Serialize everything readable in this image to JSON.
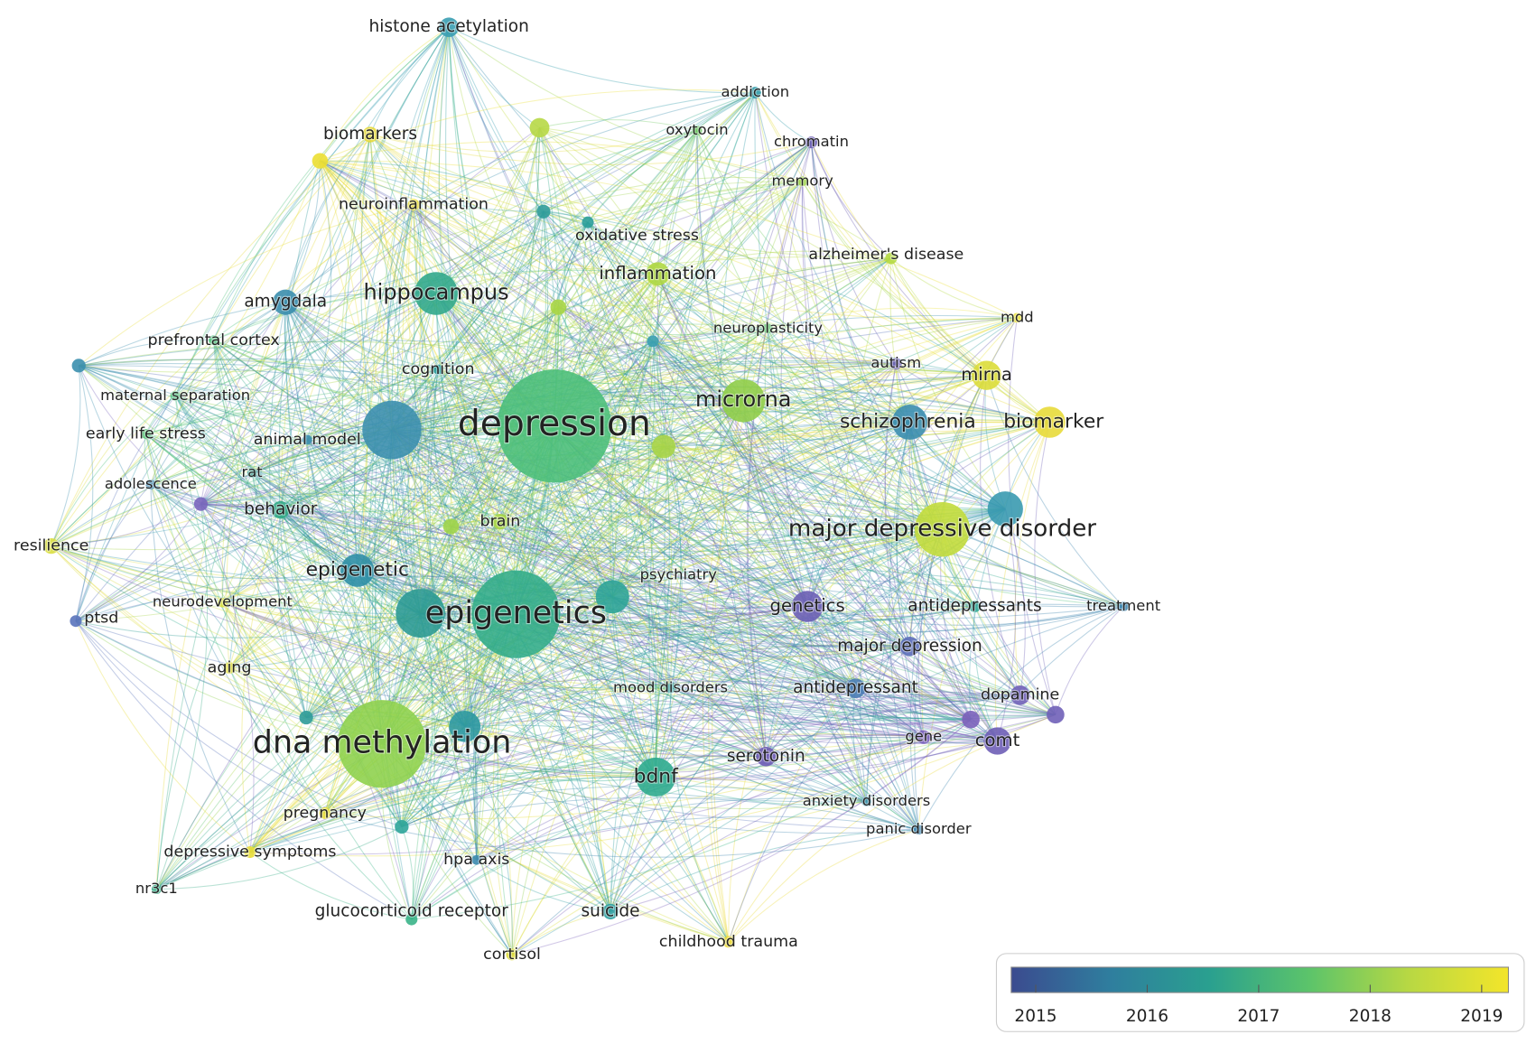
{
  "nodes": [
    {
      "label": "histone acetylation",
      "color": "#3a9fb2"
    },
    {
      "label": "addiction",
      "color": "#2f9aa8"
    },
    {
      "label": "biomarkers",
      "color": "#e6d93a"
    },
    {
      "label": "oxytocin",
      "color": "#6cc85e"
    },
    {
      "label": "chromatin",
      "color": "#6a5cb3"
    },
    {
      "label": "memory",
      "color": "#9ed44a"
    },
    {
      "label": "neuroinflammation",
      "color": "#e9dd36"
    },
    {
      "label": "oxidative stress",
      "color": "#2b9f9a"
    },
    {
      "label": "alzheimer's disease",
      "color": "#b5d942"
    },
    {
      "label": "inflammation",
      "color": "#b0d843"
    },
    {
      "label": "hippocampus",
      "color": "#32a98c"
    },
    {
      "label": "amygdala",
      "color": "#3b8eae"
    },
    {
      "label": "mdd",
      "color": "#ece33a"
    },
    {
      "label": "neuroplasticity",
      "color": "#5ec46e"
    },
    {
      "label": "prefrontal cortex",
      "color": "#4cbf7a"
    },
    {
      "label": "cognition",
      "color": "#2e9c9c"
    },
    {
      "label": "autism",
      "color": "#6b5fb5"
    },
    {
      "label": "mirna",
      "color": "#dcdd3a"
    },
    {
      "label": "maternal separation",
      "color": "#4cbf7a"
    },
    {
      "label": "microrna",
      "color": "#8fcd4a"
    },
    {
      "label": "depression",
      "color": "#4cbf7a"
    },
    {
      "label": "schizophrenia",
      "color": "#3a8daf"
    },
    {
      "label": "biomarker",
      "color": "#e8da3a"
    },
    {
      "label": "early life stress",
      "color": "#55c275"
    },
    {
      "label": "animal model",
      "color": "#3c8fae"
    },
    {
      "label": "rat",
      "color": "#3aa090"
    },
    {
      "label": "adolescence",
      "color": "#3d85b0"
    },
    {
      "label": "behavior",
      "color": "#30a886"
    },
    {
      "label": "brain",
      "color": "#a9d646"
    },
    {
      "label": "resilience",
      "color": "#d9de40"
    },
    {
      "label": "major depressive disorder",
      "color": "#c2dc3c"
    },
    {
      "label": "epigenetic",
      "color": "#2f8fa6"
    },
    {
      "label": "psychiatry",
      "color": "#2fa497"
    },
    {
      "label": "epigenetics",
      "color": "#34ad8a"
    },
    {
      "label": "neurodevelopment",
      "color": "#d9df3e"
    },
    {
      "label": "ptsd",
      "color": "#5a74bb"
    },
    {
      "label": "genetics",
      "color": "#6b5fb5"
    },
    {
      "label": "antidepressants",
      "color": "#34aa9a"
    },
    {
      "label": "treatment",
      "color": "#3d85b0"
    },
    {
      "label": "major depression",
      "color": "#5a6cb8"
    },
    {
      "label": "aging",
      "color": "#e0dc3c"
    },
    {
      "label": "mood disorders",
      "color": "#3aa0a0"
    },
    {
      "label": "antidepressant",
      "color": "#4a7cb4"
    },
    {
      "label": "dopamine",
      "color": "#7060b8"
    },
    {
      "label": "dna methylation",
      "color": "#8fd14f"
    },
    {
      "label": "gene",
      "color": "#7a60ba"
    },
    {
      "label": "comt",
      "color": "#6e5eb6"
    },
    {
      "label": "serotonin",
      "color": "#6d5bb4"
    },
    {
      "label": "bdnf",
      "color": "#2fab8e"
    },
    {
      "label": "anxiety disorders",
      "color": "#3a90aa"
    },
    {
      "label": "pregnancy",
      "color": "#e5dc36"
    },
    {
      "label": "panic disorder",
      "color": "#3d85b0"
    },
    {
      "label": "depressive symptoms",
      "color": "#e8dd36"
    },
    {
      "label": "hpa axis",
      "color": "#3b8aae"
    },
    {
      "label": "nr3c1",
      "color": "#3aab86"
    },
    {
      "label": "glucocorticoid receptor",
      "color": "#3ab488"
    },
    {
      "label": "suicide",
      "color": "#2e9ea0"
    },
    {
      "label": "childhood trauma",
      "color": "#ead936"
    },
    {
      "label": "cortisol",
      "color": "#dedc3a"
    }
  ],
  "legend": {
    "range": [
      2014.78,
      2019.24
    ],
    "ticks": [
      2015,
      2016,
      2017,
      2018,
      2019
    ],
    "colors": [
      "#3b4b8f",
      "#2f7e9e",
      "#2aa08f",
      "#5cc46a",
      "#b8d843",
      "#f3e52a"
    ]
  }
}
